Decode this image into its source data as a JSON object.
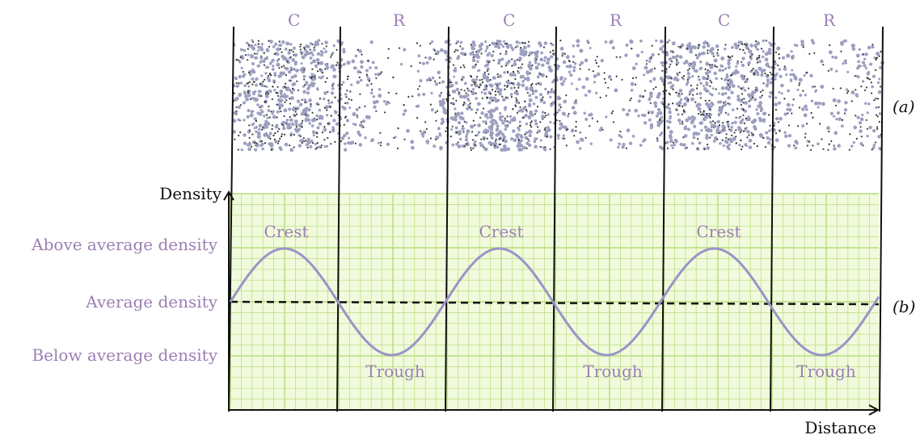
{
  "zone_labels": [
    "C",
    "R",
    "C",
    "R",
    "C",
    "R"
  ],
  "part_labels": {
    "a": "(a)",
    "b": "(b)"
  },
  "axis": {
    "y": "Density",
    "x": "Distance"
  },
  "levels": {
    "above": "Above average density",
    "average": "Average density",
    "below": "Below average density"
  },
  "wave_labels": {
    "crest": [
      "Crest",
      "Crest",
      "Crest"
    ],
    "trough": [
      "Trough",
      "Trough",
      "Trough"
    ]
  },
  "colors": {
    "zone_text": "#9b7fb4",
    "grid_bg": "#f1fadc",
    "grid_line": "#b7dc7c",
    "wave": "#9a94c8",
    "particles_light": "#9d9fc0",
    "particles_dark": "#3a3a3a"
  }
}
